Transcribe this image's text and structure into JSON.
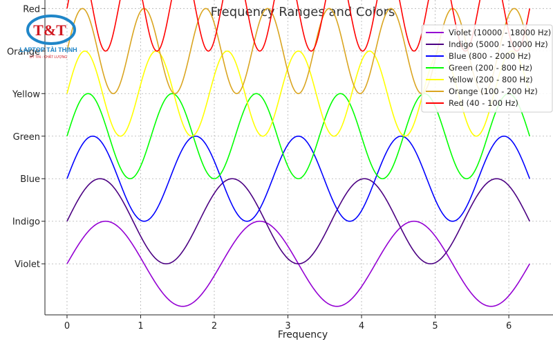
{
  "logo": {
    "text": "T&T",
    "line1": "LAPTOP TÀI THỊNH",
    "line2": "UY TÍN - CHẤT LƯỢNG",
    "colors": {
      "ring": "#1f86c8",
      "text": "#d01820",
      "line1": "#1f86c8"
    }
  },
  "chart_data": {
    "type": "line",
    "title": "Frequency Ranges and Colors",
    "xlabel": "Frequency",
    "ylabel": "",
    "xlim": [
      -0.3,
      6.6
    ],
    "ylim": [
      -0.2,
      7.2
    ],
    "xticks": [
      0,
      1,
      2,
      3,
      4,
      5,
      6
    ],
    "yticks": [
      {
        "value": 1,
        "label": "Violet"
      },
      {
        "value": 2,
        "label": "Indigo"
      },
      {
        "value": 3,
        "label": "Blue"
      },
      {
        "value": 4,
        "label": "Green"
      },
      {
        "value": 5,
        "label": "Yellow"
      },
      {
        "value": 6,
        "label": "Orange"
      },
      {
        "value": 7,
        "label": "Red"
      }
    ],
    "grid": true,
    "legend_position": "top-right",
    "x_range": [
      0,
      6.2832
    ],
    "series": [
      {
        "name": "Violet (10000 - 18000 Hz)",
        "color": "#9400d3",
        "offset": 1,
        "amplitude": 1,
        "frequency": 3
      },
      {
        "name": "Indigo (5000 - 10000 Hz)",
        "color": "#4b0082",
        "offset": 2,
        "amplitude": 1,
        "frequency": 3.5
      },
      {
        "name": "Blue (800 - 2000 Hz)",
        "color": "#0000ff",
        "offset": 3,
        "amplitude": 1,
        "frequency": 4.5
      },
      {
        "name": "Green (200 - 800 Hz)",
        "color": "#00ff00",
        "offset": 4,
        "amplitude": 1,
        "frequency": 5.5
      },
      {
        "name": "Yellow (200 - 800 Hz)",
        "color": "#ffff00",
        "offset": 5,
        "amplitude": 1,
        "frequency": 6.5
      },
      {
        "name": "Orange (100 - 200 Hz)",
        "color": "#daa520",
        "offset": 6,
        "amplitude": 1,
        "frequency": 7.5
      },
      {
        "name": "Red (40 - 100 Hz)",
        "color": "#ff0000",
        "offset": 7,
        "amplitude": 1,
        "frequency": 9
      }
    ]
  }
}
